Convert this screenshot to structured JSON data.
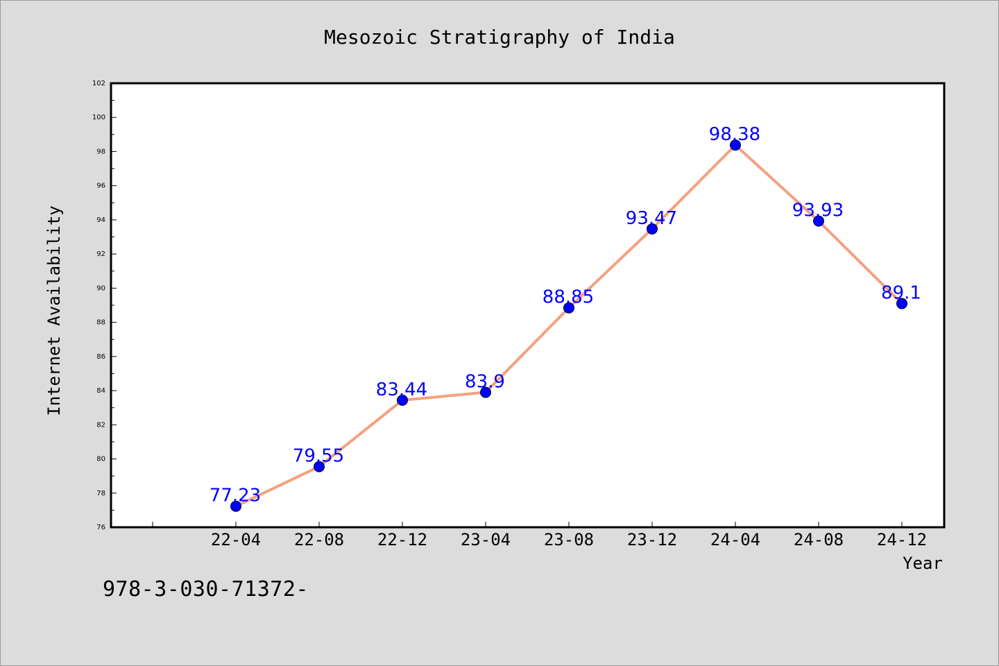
{
  "chart_data": {
    "type": "line",
    "title": "Mesozoic Stratigraphy of India",
    "xlabel": "Year",
    "ylabel": "Internet Availability",
    "categories": [
      "22-04",
      "22-08",
      "22-12",
      "23-04",
      "23-08",
      "23-12",
      "24-04",
      "24-08",
      "24-12"
    ],
    "values": [
      77.23,
      79.55,
      83.44,
      83.9,
      88.85,
      93.47,
      98.38,
      93.93,
      89.1
    ],
    "ylim": [
      76,
      102
    ],
    "yticks": [
      76,
      78,
      80,
      82,
      84,
      86,
      88,
      90,
      92,
      94,
      96,
      98,
      100,
      102
    ],
    "grid": false,
    "legend": "none",
    "line_color": "#f4a07e",
    "marker_color": "#0000ff",
    "label_color": "#0000ff"
  },
  "footer": {
    "isbn": "978-3-030-71372-"
  }
}
